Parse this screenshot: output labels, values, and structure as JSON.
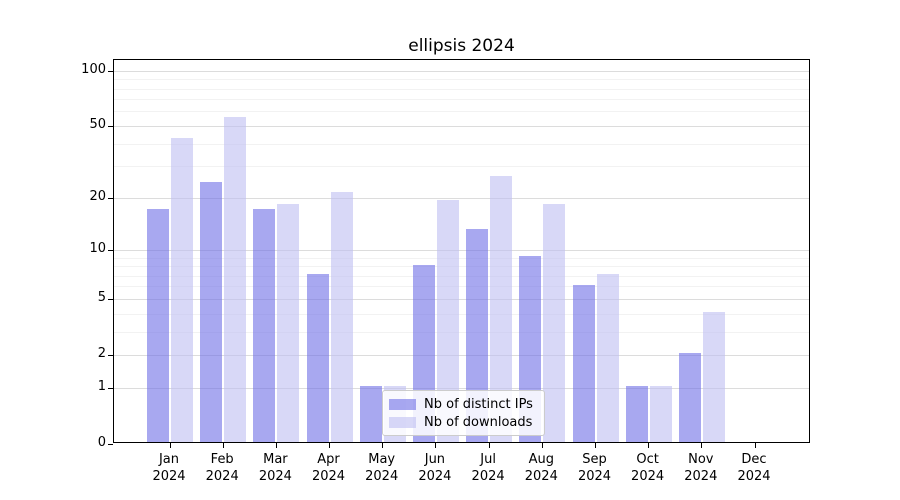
{
  "title": {
    "text": "ellipsis 2024"
  },
  "legend": {
    "items": [
      {
        "label": "Nb of distinct IPs"
      },
      {
        "label": "Nb of downloads"
      }
    ]
  },
  "chart_data": {
    "type": "bar",
    "title": "ellipsis 2024",
    "categories": [
      "Jan",
      "Feb",
      "Mar",
      "Apr",
      "May",
      "Jun",
      "Jul",
      "Aug",
      "Sep",
      "Oct",
      "Nov",
      "Dec"
    ],
    "category_year": "2024",
    "series": [
      {
        "name": "Nb of distinct IPs",
        "color_hex": "#a8a8f0",
        "color_rgba": "rgba(110,110,230,0.6)",
        "values": [
          17,
          24,
          17,
          7,
          1,
          8,
          13,
          9,
          6,
          1,
          2,
          0
        ]
      },
      {
        "name": "Nb of downloads",
        "color_hex": "#d8d8f7",
        "color_rgba": "rgba(190,190,242,0.6)",
        "values": [
          42,
          55,
          18,
          21,
          1,
          19,
          26,
          18,
          7,
          1,
          4,
          0
        ]
      }
    ],
    "y_scale": "log1p",
    "y_major_ticks": [
      0,
      1,
      2,
      5,
      10,
      20,
      50,
      100
    ],
    "y_minor_ticks": [
      3,
      4,
      6,
      7,
      8,
      9,
      30,
      40,
      60,
      70,
      80,
      90
    ],
    "ylim": [
      0,
      115
    ],
    "xlabel": "",
    "ylabel": "",
    "grid": true,
    "legend_position": "lower center",
    "grid_major_color": "#dcdcdc",
    "grid_minor_color": "#f2f2f2"
  }
}
